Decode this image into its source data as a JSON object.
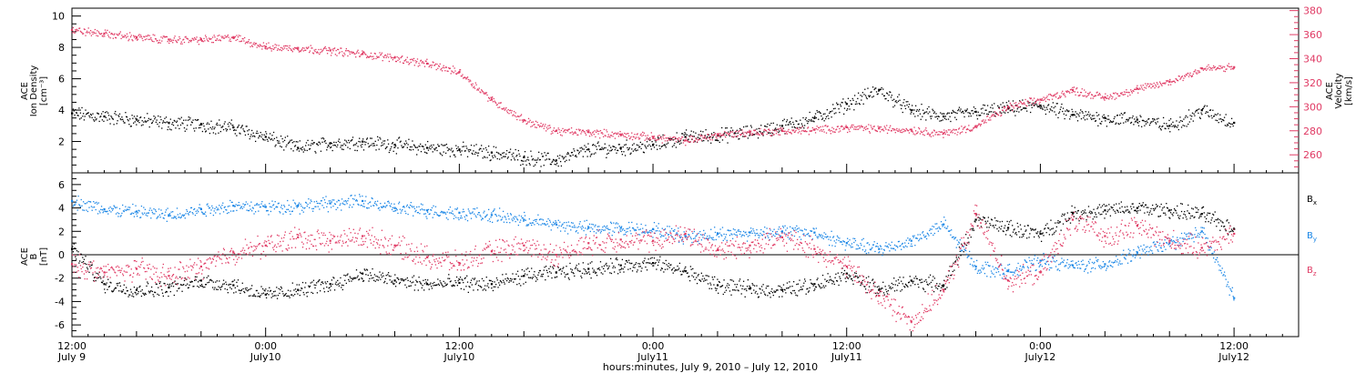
{
  "chart_data": [
    {
      "type": "scatter",
      "title": "",
      "left_axis": {
        "label_lines": [
          "ACE",
          "Ion Density",
          "[cm⁻³]"
        ],
        "range": [
          0,
          10.5
        ],
        "ticks": [
          2,
          4,
          6,
          8,
          10
        ]
      },
      "right_axis": {
        "label_lines": [
          "ACE",
          "Velocity",
          "[km/s]"
        ],
        "range": [
          245,
          382
        ],
        "ticks": [
          260,
          280,
          300,
          320,
          340,
          360,
          380
        ],
        "color": "#e03a64"
      },
      "series": [
        {
          "name": "",
          "axis": "left",
          "color": "#000000",
          "x": [
            0,
            2,
            4,
            6,
            8,
            10,
            12,
            14,
            16,
            18,
            20,
            22,
            24,
            26,
            28,
            30,
            32,
            34,
            36,
            38,
            40,
            42,
            44,
            46,
            48,
            50,
            52,
            54,
            56,
            58,
            60,
            62,
            64,
            66,
            68,
            70,
            72
          ],
          "values": [
            3.8,
            3.6,
            3.4,
            3.2,
            3.1,
            2.9,
            2.3,
            1.6,
            1.9,
            2.0,
            1.8,
            1.6,
            1.5,
            1.3,
            1.0,
            0.8,
            1.5,
            1.6,
            1.8,
            2.3,
            2.4,
            2.6,
            3.0,
            3.5,
            4.4,
            5.3,
            4.0,
            3.6,
            3.9,
            4.1,
            4.3,
            3.7,
            3.5,
            3.4,
            3.0,
            4.0,
            3.2
          ]
        },
        {
          "name": "",
          "axis": "right",
          "color": "#e03a64",
          "x": [
            0,
            2,
            4,
            6,
            8,
            10,
            12,
            14,
            16,
            18,
            20,
            22,
            24,
            26,
            28,
            30,
            32,
            34,
            36,
            38,
            40,
            42,
            44,
            46,
            48,
            50,
            52,
            54,
            56,
            58,
            60,
            62,
            64,
            66,
            68,
            70,
            72
          ],
          "values": [
            364,
            361,
            358,
            356,
            356,
            358,
            350,
            349,
            347,
            344,
            341,
            336,
            329,
            306,
            289,
            280,
            279,
            277,
            275,
            272,
            277,
            279,
            280,
            281,
            283,
            282,
            281,
            278,
            284,
            300,
            306,
            314,
            308,
            315,
            321,
            332,
            333
          ]
        }
      ]
    },
    {
      "type": "scatter",
      "title": "",
      "left_axis": {
        "label_lines": [
          "ACE",
          "B",
          "[nT]"
        ],
        "range": [
          -7,
          7
        ],
        "ticks": [
          -6,
          -4,
          -2,
          0,
          2,
          4,
          6
        ]
      },
      "zero_line": true,
      "legend": [
        "B",
        "B",
        "B"
      ],
      "legend_subscripts": [
        "x",
        "y",
        "z"
      ],
      "series": [
        {
          "name": "Bx",
          "color": "#000000",
          "x": [
            0,
            2,
            4,
            6,
            8,
            10,
            12,
            14,
            16,
            18,
            20,
            22,
            24,
            26,
            28,
            30,
            32,
            34,
            36,
            38,
            40,
            42,
            44,
            46,
            48,
            50,
            52,
            54,
            56,
            58,
            60,
            62,
            64,
            66,
            68,
            70,
            72
          ],
          "values": [
            0.5,
            -2.5,
            -3.0,
            -2.8,
            -2.2,
            -2.6,
            -3.4,
            -3.0,
            -2.5,
            -1.6,
            -2.2,
            -2.5,
            -2.4,
            -2.5,
            -1.8,
            -1.5,
            -1.2,
            -0.9,
            -0.7,
            -1.4,
            -2.6,
            -2.9,
            -3.0,
            -2.5,
            -1.6,
            -3.0,
            -2.2,
            -2.6,
            3.0,
            2.3,
            1.8,
            3.6,
            3.8,
            4.0,
            3.8,
            3.5,
            2.2
          ]
        },
        {
          "name": "By",
          "color": "#1a86e6",
          "x": [
            0,
            2,
            4,
            6,
            8,
            10,
            12,
            14,
            16,
            18,
            20,
            22,
            24,
            26,
            28,
            30,
            32,
            34,
            36,
            38,
            40,
            42,
            44,
            46,
            48,
            50,
            52,
            54,
            56,
            58,
            60,
            62,
            64,
            66,
            68,
            70,
            72
          ],
          "values": [
            4.6,
            3.9,
            3.7,
            3.4,
            3.9,
            4.2,
            4.1,
            4.2,
            4.4,
            4.6,
            4.0,
            3.8,
            3.6,
            3.4,
            3.0,
            2.6,
            2.3,
            2.3,
            2.2,
            1.6,
            1.8,
            1.9,
            2.0,
            1.9,
            1.0,
            0.5,
            1.2,
            2.6,
            -1.0,
            -1.4,
            -0.5,
            -0.9,
            -0.8,
            0.2,
            1.0,
            2.0,
            -3.7
          ]
        },
        {
          "name": "Bz",
          "color": "#e03a64",
          "x": [
            0,
            2,
            4,
            6,
            8,
            10,
            12,
            14,
            16,
            18,
            20,
            22,
            24,
            26,
            28,
            30,
            32,
            34,
            36,
            38,
            40,
            42,
            44,
            46,
            48,
            50,
            52,
            54,
            56,
            58,
            60,
            62,
            64,
            66,
            68,
            70,
            72
          ],
          "values": [
            -0.8,
            -1.5,
            -1.2,
            -1.8,
            -1.0,
            0.2,
            0.8,
            1.5,
            1.2,
            1.6,
            0.8,
            -0.2,
            -0.7,
            0.3,
            0.8,
            0.0,
            1.0,
            1.3,
            1.2,
            1.8,
            0.4,
            0.8,
            1.5,
            0.5,
            -1.0,
            -3.5,
            -5.7,
            -3.0,
            3.5,
            -2.2,
            -1.5,
            3.0,
            1.6,
            2.5,
            1.2,
            0.6,
            1.8
          ]
        }
      ]
    }
  ],
  "x_axis": {
    "range_hours": [
      0,
      76
    ],
    "tick_labels": [
      {
        "time": "12:00",
        "date": "July 9",
        "hour": 0
      },
      {
        "time": "0:00",
        "date": "July10",
        "hour": 12
      },
      {
        "time": "12:00",
        "date": "July10",
        "hour": 24
      },
      {
        "time": "0:00",
        "date": "July11",
        "hour": 36
      },
      {
        "time": "12:00",
        "date": "July11",
        "hour": 48
      },
      {
        "time": "0:00",
        "date": "July12",
        "hour": 60
      },
      {
        "time": "12:00",
        "date": "July12",
        "hour": 72
      }
    ],
    "title": "hours:minutes, July  9, 2010 – July 12, 2010"
  },
  "colors": {
    "black": "#000000",
    "pink": "#e03a64",
    "blue": "#1a86e6"
  }
}
